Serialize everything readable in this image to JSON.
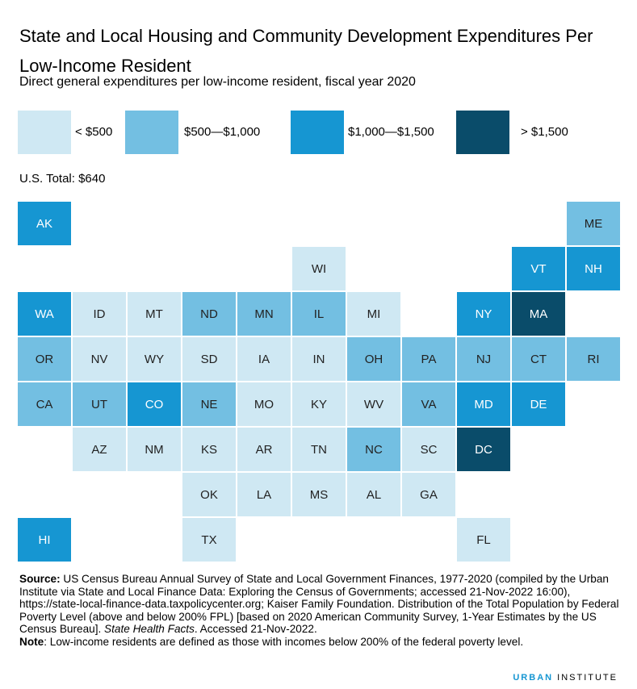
{
  "header": {
    "title": "State and Local Housing and Community Development Expenditures Per Low-Income Resident",
    "subtitle": "Direct general expenditures per low-income resident, fiscal year 2020"
  },
  "legend": [
    {
      "label": "< $500",
      "color": "#cfe8f3"
    },
    {
      "label": "$500—$1,000",
      "color": "#73bfe2"
    },
    {
      "label": "$1,000—$1,500",
      "color": "#1696d2"
    },
    {
      "label": "> $1,500",
      "color": "#0a4c6a"
    }
  ],
  "us_total": "U.S. Total: $640",
  "grid": {
    "rows": [
      [
        {
          "label": "AK",
          "color": "#1696d2"
        },
        null,
        null,
        null,
        null,
        null,
        null,
        null,
        null,
        null,
        {
          "label": "ME",
          "color": "#73bfe2"
        }
      ],
      [
        null,
        null,
        null,
        null,
        null,
        {
          "label": "WI",
          "color": "#cfe8f3"
        },
        null,
        null,
        null,
        {
          "label": "VT",
          "color": "#1696d2"
        },
        {
          "label": "NH",
          "color": "#1696d2"
        }
      ],
      [
        {
          "label": "WA",
          "color": "#1696d2"
        },
        {
          "label": "ID",
          "color": "#cfe8f3"
        },
        {
          "label": "MT",
          "color": "#cfe8f3"
        },
        {
          "label": "ND",
          "color": "#73bfe2"
        },
        {
          "label": "MN",
          "color": "#73bfe2"
        },
        {
          "label": "IL",
          "color": "#73bfe2"
        },
        {
          "label": "MI",
          "color": "#cfe8f3"
        },
        null,
        {
          "label": "NY",
          "color": "#1696d2"
        },
        {
          "label": "MA",
          "color": "#0a4c6a"
        },
        null
      ],
      [
        {
          "label": "OR",
          "color": "#73bfe2"
        },
        {
          "label": "NV",
          "color": "#cfe8f3"
        },
        {
          "label": "WY",
          "color": "#cfe8f3"
        },
        {
          "label": "SD",
          "color": "#cfe8f3"
        },
        {
          "label": "IA",
          "color": "#cfe8f3"
        },
        {
          "label": "IN",
          "color": "#cfe8f3"
        },
        {
          "label": "OH",
          "color": "#73bfe2"
        },
        {
          "label": "PA",
          "color": "#73bfe2"
        },
        {
          "label": "NJ",
          "color": "#73bfe2"
        },
        {
          "label": "CT",
          "color": "#73bfe2"
        },
        {
          "label": "RI",
          "color": "#73bfe2"
        }
      ],
      [
        {
          "label": "CA",
          "color": "#73bfe2"
        },
        {
          "label": "UT",
          "color": "#73bfe2"
        },
        {
          "label": "CO",
          "color": "#1696d2"
        },
        {
          "label": "NE",
          "color": "#73bfe2"
        },
        {
          "label": "MO",
          "color": "#cfe8f3"
        },
        {
          "label": "KY",
          "color": "#cfe8f3"
        },
        {
          "label": "WV",
          "color": "#cfe8f3"
        },
        {
          "label": "VA",
          "color": "#73bfe2"
        },
        {
          "label": "MD",
          "color": "#1696d2"
        },
        {
          "label": "DE",
          "color": "#1696d2"
        },
        null
      ],
      [
        null,
        {
          "label": "AZ",
          "color": "#cfe8f3"
        },
        {
          "label": "NM",
          "color": "#cfe8f3"
        },
        {
          "label": "KS",
          "color": "#cfe8f3"
        },
        {
          "label": "AR",
          "color": "#cfe8f3"
        },
        {
          "label": "TN",
          "color": "#cfe8f3"
        },
        {
          "label": "NC",
          "color": "#73bfe2"
        },
        {
          "label": "SC",
          "color": "#cfe8f3"
        },
        {
          "label": "DC",
          "color": "#0a4c6a"
        },
        null,
        null
      ],
      [
        null,
        null,
        null,
        {
          "label": "OK",
          "color": "#cfe8f3"
        },
        {
          "label": "LA",
          "color": "#cfe8f3"
        },
        {
          "label": "MS",
          "color": "#cfe8f3"
        },
        {
          "label": "AL",
          "color": "#cfe8f3"
        },
        {
          "label": "GA",
          "color": "#cfe8f3"
        },
        null,
        null,
        null
      ],
      [
        {
          "label": "HI",
          "color": "#1696d2"
        },
        null,
        null,
        {
          "label": "TX",
          "color": "#cfe8f3"
        },
        null,
        null,
        null,
        null,
        {
          "label": "FL",
          "color": "#cfe8f3"
        },
        null,
        null
      ]
    ]
  },
  "notes": {
    "source": [
      {
        "text": "Source:",
        "style": "bold"
      },
      {
        "text": " US Census Bureau Annual Survey of State and Local Government Finances, 1977-2020 (compiled by the Urban Institute via State and Local Finance Data:  Exploring the Census of Governments; accessed 21-Nov-2022 16:00), https://state-local-finance-data.taxpolicycenter.org; Kaiser Family Foundation. Distribution of the Total Population by Federal Poverty Level (above and below 200% FPL) [based on 2020 American Community Survey, 1-Year Estimates by the US Census Bureau]. ",
        "style": "normal"
      },
      {
        "text": "State Health Facts",
        "style": "italic"
      },
      {
        "text": ". Accessed 21-Nov-2022.",
        "style": "normal"
      }
    ],
    "note": [
      {
        "text": "Note",
        "style": "bold"
      },
      {
        "text": ": Low-income residents are defined as those with incomes below 200% of the federal poverty level.",
        "style": "normal"
      }
    ]
  },
  "footer": {
    "brand": "URBAN",
    "rest": "INSTITUTE"
  }
}
